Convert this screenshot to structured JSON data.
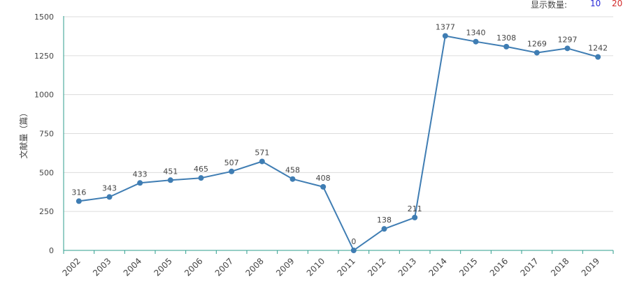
{
  "display_count": {
    "label": "显示数量:",
    "option_10": "10",
    "option_20": "20"
  },
  "colors": {
    "line": "#3f7db3",
    "axis": "#2e9e8e",
    "grid": "#dcdcdc",
    "text": "#444444"
  },
  "chart_data": {
    "type": "line",
    "title": "",
    "xlabel": "",
    "ylabel": "文献量（篇）",
    "ylim": [
      0,
      1500
    ],
    "yticks": [
      0,
      250,
      500,
      750,
      1000,
      1250,
      1500
    ],
    "grid": true,
    "categories": [
      "2002",
      "2003",
      "2004",
      "2005",
      "2006",
      "2007",
      "2008",
      "2009",
      "2010",
      "2011",
      "2012",
      "2013",
      "2014",
      "2015",
      "2016",
      "2017",
      "2018",
      "2019"
    ],
    "series": [
      {
        "values": [
          316,
          343,
          433,
          451,
          465,
          507,
          571,
          458,
          408,
          0,
          138,
          211,
          1377,
          1340,
          1308,
          1269,
          1297,
          1242
        ]
      }
    ]
  }
}
